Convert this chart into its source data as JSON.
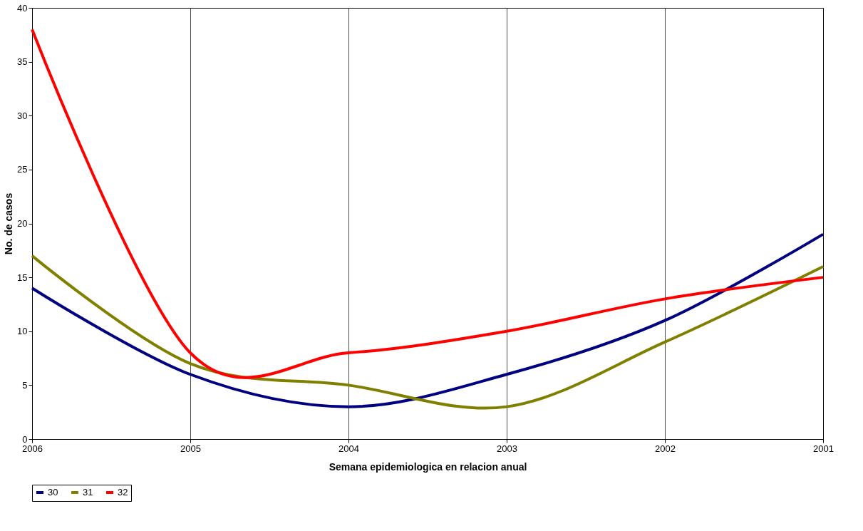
{
  "chart_data": {
    "type": "line",
    "xlabel": "Semana epidemiologica en relacion anual",
    "ylabel": "No. de casos",
    "categories": [
      "2006",
      "2005",
      "2004",
      "2003",
      "2002",
      "2001"
    ],
    "series": [
      {
        "name": "30",
        "color": "#000080",
        "values": [
          14,
          6,
          3,
          6,
          11,
          19
        ]
      },
      {
        "name": "31",
        "color": "#808000",
        "values": [
          17,
          7,
          5,
          3,
          9,
          16
        ]
      },
      {
        "name": "32",
        "color": "#ff0000",
        "values": [
          38,
          8,
          8,
          10,
          13,
          15
        ]
      }
    ],
    "ylim": [
      0,
      40
    ],
    "yticks": [
      0,
      5,
      10,
      15,
      20,
      25,
      30,
      35,
      40
    ],
    "grid": "x",
    "legend": "bottom",
    "marker": "none",
    "line_style": "solid"
  }
}
